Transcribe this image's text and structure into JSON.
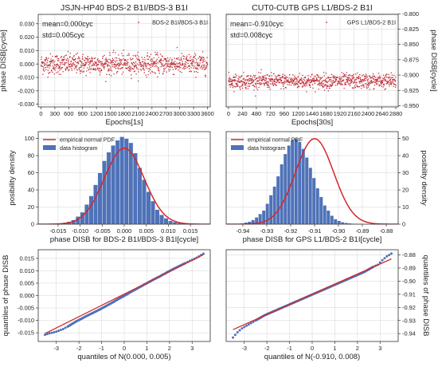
{
  "colors": {
    "scatter": "#c0303a",
    "bar": "#4f72b8",
    "bar_edge": "#2f4f86",
    "curve": "#d62728",
    "frame": "#333333",
    "grid": "#d3d3d3"
  },
  "chart_data": [
    {
      "id": "ts1",
      "type": "scatter",
      "title": "JSJN-HP40 BDS-2 B1I/BDS-3 B1I",
      "xlabel": "Epochs[1s]",
      "ylabel": "phase DISB[cycle]",
      "ylabel_side": "left",
      "xlim": [
        -60,
        3660
      ],
      "ylim": [
        -0.032,
        0.037
      ],
      "xticks": [
        0,
        300,
        600,
        900,
        1200,
        1500,
        1800,
        2100,
        2400,
        2700,
        3000,
        3300,
        3600
      ],
      "yticks": [
        -0.03,
        -0.02,
        -0.01,
        0.0,
        0.01,
        0.02,
        0.03
      ],
      "ytick_labels": [
        "-0.030",
        "-0.020",
        "-0.010",
        "0.000",
        "0.010",
        "0.020",
        "0.030"
      ],
      "annotations": [
        "mean=0.000cyc",
        "std=0.005cyc"
      ],
      "legend": "BDS-2 B1I/BDS-3 B1I",
      "legend_loc": "upper right",
      "series": {
        "x_start": 0,
        "x_end": 3600,
        "n_points": 3600,
        "mean": 0.0,
        "std": 0.005,
        "description": "dense scatter band around mean"
      },
      "grid": true
    },
    {
      "id": "ts2",
      "type": "scatter",
      "title": "CUT0-CUTB GPS L1/BDS-2 B1I",
      "xlabel": "Epochs[30s]",
      "ylabel": "phase DISB[cycle]",
      "ylabel_side": "right",
      "xlim": [
        -40,
        2920
      ],
      "ylim": [
        -0.952,
        -0.801
      ],
      "xticks": [
        0,
        240,
        480,
        720,
        960,
        1200,
        1440,
        1680,
        1920,
        2160,
        2400,
        2640,
        2880
      ],
      "yticks": [
        -0.95,
        -0.925,
        -0.9,
        -0.875,
        -0.85,
        -0.825,
        -0.8
      ],
      "ytick_labels": [
        "-0.950",
        "-0.925",
        "-0.900",
        "-0.875",
        "-0.850",
        "-0.825",
        "-0.800"
      ],
      "annotations": [
        "mean=-0.910cyc",
        "std=0.008cyc"
      ],
      "legend": "GPS L1/BDS-2 B1I",
      "legend_loc": "upper right",
      "series": {
        "x_start": 0,
        "x_end": 2880,
        "n_points": 2880,
        "mean": -0.91,
        "std": 0.008
      },
      "grid": true
    },
    {
      "id": "hist1",
      "type": "bar",
      "xlabel": "phase DISB for BDS-2 B1I/BDS-3 B1I[cycle]",
      "ylabel": "posibility density",
      "ylabel_side": "left",
      "xlim": [
        -0.0195,
        0.0195
      ],
      "ylim": [
        0,
        108
      ],
      "xticks": [
        -0.015,
        -0.01,
        -0.005,
        0.0,
        0.005,
        0.01,
        0.015
      ],
      "xtick_labels": [
        "-0.015",
        "-0.010",
        "-0.005",
        "0.000",
        "0.005",
        "0.010",
        "0.015"
      ],
      "yticks": [
        0,
        20,
        40,
        60,
        80,
        100
      ],
      "legend": [
        "empirical normal PDF",
        "data histogram"
      ],
      "legend_loc": "upper left",
      "pdf": {
        "mean": 0.0,
        "std": 0.0045
      },
      "bins": {
        "start": -0.016,
        "width": 0.001,
        "heights": [
          0.5,
          0.8,
          1.8,
          3,
          5,
          9,
          14,
          23,
          33,
          46,
          60,
          74,
          84,
          92,
          98,
          102,
          100,
          95,
          83,
          66,
          52,
          38,
          27,
          17,
          11,
          7,
          4,
          2.5,
          1.5,
          0.8,
          0.5,
          0.3
        ]
      },
      "grid": true
    },
    {
      "id": "hist2",
      "type": "bar",
      "xlabel": "phase DISB for GPS L1/BDS-2 B1I[cycle]",
      "ylabel": "posibility density",
      "ylabel_side": "right",
      "xlim": [
        -0.947,
        -0.875
      ],
      "ylim": [
        0,
        54
      ],
      "xticks": [
        -0.94,
        -0.93,
        -0.92,
        -0.91,
        -0.9,
        -0.89,
        -0.88
      ],
      "xtick_labels": [
        "-0.94",
        "-0.93",
        "-0.92",
        "-0.91",
        "-0.90",
        "-0.89",
        "-0.88"
      ],
      "yticks": [
        0,
        10,
        20,
        30,
        40,
        50
      ],
      "legend": [
        "empirical normal PDF",
        "data histogram"
      ],
      "legend_loc": "upper left",
      "pdf": {
        "mean": -0.91,
        "std": 0.008
      },
      "bins": {
        "start": -0.9425,
        "width": 0.0015,
        "heights": [
          0.3,
          0.6,
          1,
          1.5,
          2.5,
          4,
          6,
          8,
          12,
          17,
          22,
          28,
          35,
          41,
          46,
          49,
          50,
          48,
          44,
          39,
          33,
          27,
          21,
          16,
          11,
          8,
          5,
          3,
          2,
          1.2,
          0.8,
          0.6,
          0.4,
          0.3,
          0.3,
          0.2,
          0.2,
          0.2,
          0.2,
          0.2,
          0.2,
          0.2
        ]
      },
      "grid": true
    },
    {
      "id": "qq1",
      "type": "scatter",
      "xlabel": "quantiles of N(0.000, 0.005)",
      "ylabel": "quantiles of phase DISB",
      "ylabel_side": "left",
      "xlim": [
        -3.8,
        3.8
      ],
      "ylim": [
        -0.0185,
        0.0185
      ],
      "xticks": [
        -3,
        -2,
        -1,
        0,
        1,
        2,
        3
      ],
      "yticks": [
        -0.015,
        -0.01,
        -0.005,
        0.0,
        0.005,
        0.01,
        0.015
      ],
      "ytick_labels": [
        "-0.015",
        "-0.010",
        "-0.005",
        "0.000",
        "0.005",
        "0.010",
        "0.015"
      ],
      "reference_line": {
        "x": [
          -3.5,
          3.5
        ],
        "y": [
          -0.0153,
          0.0165
        ]
      },
      "points": [
        [
          -3.5,
          -0.0158
        ],
        [
          -3.3,
          -0.0152
        ],
        [
          -3.1,
          -0.0148
        ],
        [
          -2.9,
          -0.0142
        ],
        [
          -2.7,
          -0.0135
        ],
        [
          -2.5,
          -0.0125
        ],
        [
          -2.3,
          -0.0114
        ],
        [
          -2.1,
          -0.0103
        ],
        [
          -1.9,
          -0.0094
        ],
        [
          -1.7,
          -0.0084
        ],
        [
          -1.5,
          -0.0075
        ],
        [
          -1.3,
          -0.0066
        ],
        [
          -1.1,
          -0.0057
        ],
        [
          -0.9,
          -0.0047
        ],
        [
          -0.7,
          -0.0037
        ],
        [
          -0.5,
          -0.0027
        ],
        [
          -0.3,
          -0.0016
        ],
        [
          -0.1,
          -0.0006
        ],
        [
          0.1,
          0.0004
        ],
        [
          0.3,
          0.0015
        ],
        [
          0.5,
          0.0025
        ],
        [
          0.7,
          0.0035
        ],
        [
          0.9,
          0.0045
        ],
        [
          1.1,
          0.0055
        ],
        [
          1.3,
          0.0065
        ],
        [
          1.5,
          0.0074
        ],
        [
          1.7,
          0.0084
        ],
        [
          1.9,
          0.0094
        ],
        [
          2.1,
          0.0104
        ],
        [
          2.3,
          0.0113
        ],
        [
          2.5,
          0.0122
        ],
        [
          2.7,
          0.0131
        ],
        [
          2.9,
          0.014
        ],
        [
          3.1,
          0.0148
        ],
        [
          3.3,
          0.0158
        ],
        [
          3.5,
          0.0169
        ]
      ],
      "grid": true
    },
    {
      "id": "qq2",
      "type": "scatter",
      "xlabel": "quantiles of N(-0.910, 0.008)",
      "ylabel": "quantiles of phase DISB",
      "ylabel_side": "right",
      "xlim": [
        -3.8,
        3.8
      ],
      "ylim": [
        -0.946,
        -0.876
      ],
      "xticks": [
        -3,
        -2,
        -1,
        0,
        1,
        2,
        3
      ],
      "yticks": [
        -0.94,
        -0.93,
        -0.92,
        -0.91,
        -0.9,
        -0.89,
        -0.88
      ],
      "ytick_labels": [
        "-0.94",
        "-0.93",
        "-0.92",
        "-0.91",
        "-0.90",
        "-0.89",
        "-0.88"
      ],
      "reference_line": {
        "x": [
          -3.5,
          3.5
        ],
        "y": [
          -0.937,
          -0.883
        ]
      },
      "points": [
        [
          -3.5,
          -0.943
        ],
        [
          -3.3,
          -0.939
        ],
        [
          -3.1,
          -0.936
        ],
        [
          -2.9,
          -0.934
        ],
        [
          -2.7,
          -0.932
        ],
        [
          -2.5,
          -0.93
        ],
        [
          -2.3,
          -0.928
        ],
        [
          -2.1,
          -0.926
        ],
        [
          -1.9,
          -0.9245
        ],
        [
          -1.7,
          -0.923
        ],
        [
          -1.5,
          -0.9215
        ],
        [
          -1.3,
          -0.92
        ],
        [
          -1.1,
          -0.9185
        ],
        [
          -0.9,
          -0.917
        ],
        [
          -0.7,
          -0.9155
        ],
        [
          -0.5,
          -0.914
        ],
        [
          -0.3,
          -0.9125
        ],
        [
          -0.1,
          -0.911
        ],
        [
          0.1,
          -0.9095
        ],
        [
          0.3,
          -0.908
        ],
        [
          0.5,
          -0.9065
        ],
        [
          0.7,
          -0.905
        ],
        [
          0.9,
          -0.9035
        ],
        [
          1.1,
          -0.902
        ],
        [
          1.3,
          -0.9005
        ],
        [
          1.5,
          -0.899
        ],
        [
          1.7,
          -0.8975
        ],
        [
          1.9,
          -0.896
        ],
        [
          2.1,
          -0.8945
        ],
        [
          2.3,
          -0.893
        ],
        [
          2.5,
          -0.891
        ],
        [
          2.7,
          -0.889
        ],
        [
          2.9,
          -0.8875
        ],
        [
          3.1,
          -0.884
        ],
        [
          3.3,
          -0.881
        ],
        [
          3.5,
          -0.879
        ]
      ],
      "grid": true
    }
  ]
}
